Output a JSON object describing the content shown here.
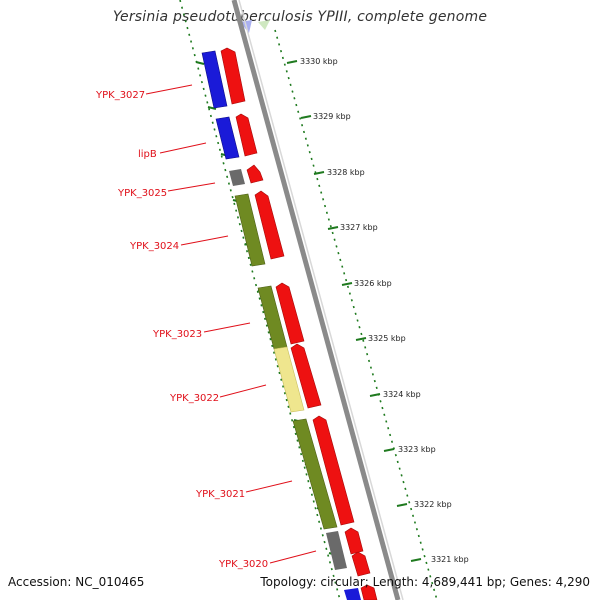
{
  "title": "Yersinia pseudotuberculosis YPIII, complete genome",
  "footer": {
    "accession": "Accession: NC_010465",
    "topology": "Topology: circular; Length: 4,689,441 bp; Genes: 4,290"
  },
  "colors": {
    "forward_cds": "#ee1111",
    "reverse_cds": "#1a1ad8",
    "olive_feature": "#6f8a22",
    "yellow_feature": "#efe68e",
    "gray_feature": "#6a6a6a",
    "backbone": "#8a8a8a",
    "ticks": "#1f7a1f",
    "labels": "#e0101a"
  },
  "scale_labels": [
    "3330 kbp",
    "3329 kbp",
    "3328 kbp",
    "3327 kbp",
    "3326 kbp",
    "3325 kbp",
    "3324 kbp",
    "3323 kbp",
    "3322 kbp",
    "3321 kbp"
  ],
  "gene_labels": [
    "YPK_3027",
    "lipB",
    "YPK_3025",
    "YPK_3024",
    "YPK_3023",
    "YPK_3022",
    "YPK_3021",
    "YPK_3020"
  ]
}
